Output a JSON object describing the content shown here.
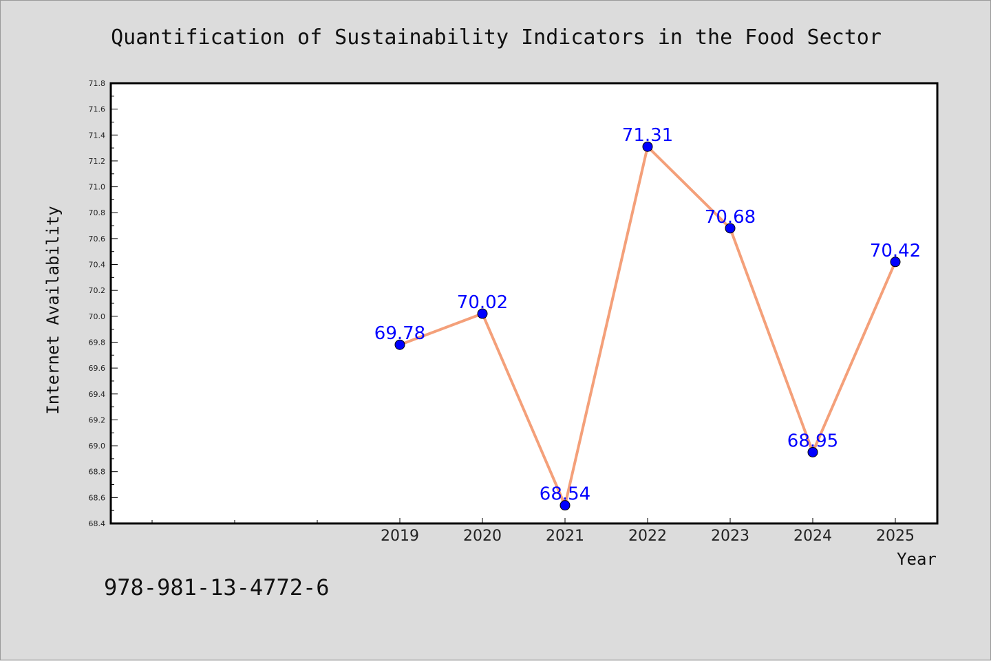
{
  "chart_data": {
    "type": "line",
    "title": "Quantification of Sustainability Indicators in the Food Sector",
    "xlabel": "Year",
    "ylabel": "Internet Availability",
    "categories": [
      "2019",
      "2020",
      "2021",
      "2022",
      "2023",
      "2024",
      "2025"
    ],
    "series": [
      {
        "values": [
          69.78,
          70.02,
          68.54,
          71.31,
          70.68,
          68.95,
          70.42
        ],
        "line_color": "#f4a07a",
        "marker_color": "#0000ff"
      }
    ],
    "data_labels": [
      "69.78",
      "70.02",
      "68.54",
      "71.31",
      "70.68",
      "68.95",
      "70.42"
    ],
    "ylim": [
      68.4,
      71.8
    ],
    "yticks": [
      "68.4",
      "68.6",
      "68.8",
      "69.0",
      "69.2",
      "69.4",
      "69.6",
      "69.8",
      "70.0",
      "70.2",
      "70.4",
      "70.6",
      "70.8",
      "71.0",
      "71.2",
      "71.4",
      "71.6",
      "71.8"
    ],
    "grid": false,
    "legend": "none"
  },
  "footer": {
    "isbn": "978-981-13-4772-6"
  },
  "colors": {
    "background": "#dcdcdc",
    "plot_background": "#ffffff",
    "line": "#f4a07a",
    "marker": "#0000ff",
    "data_label": "#0000ff"
  }
}
